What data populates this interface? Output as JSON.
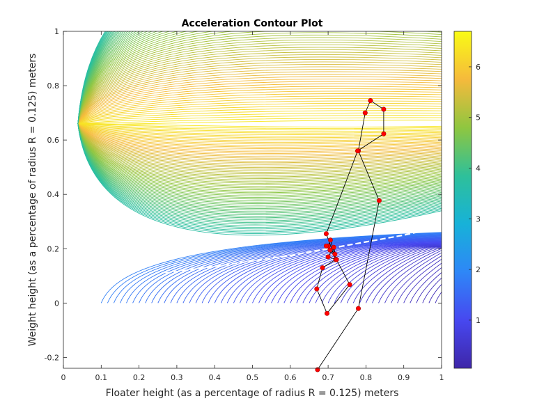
{
  "chart_data": {
    "type": "contour",
    "title": "Acceleration Contour Plot",
    "xlabel": "Floater height (as a percentage of radius R = 0.125) meters",
    "ylabel": "Weight height (as a percentage of radius R = 0.125) meters",
    "xlim": [
      0,
      1
    ],
    "ylim": [
      -0.24,
      1
    ],
    "x_ticks": [
      "0",
      "0.1",
      "0.2",
      "0.3",
      "0.4",
      "0.5",
      "0.6",
      "0.7",
      "0.8",
      "0.9",
      "1"
    ],
    "y_ticks": [
      "-0.2",
      "0",
      "0.2",
      "0.4",
      "0.6",
      "0.8",
      "1"
    ],
    "x_tick_values": [
      0,
      0.1,
      0.2,
      0.3,
      0.4,
      0.5,
      0.6,
      0.7,
      0.8,
      0.9,
      1
    ],
    "y_tick_values": [
      -0.2,
      0,
      0.2,
      0.4,
      0.6,
      0.8,
      1
    ],
    "contour_region": {
      "x": [
        0.1,
        1
      ],
      "y": [
        0,
        1
      ]
    },
    "colorbar": {
      "colormap": "parula",
      "range": [
        0.05,
        6.7
      ],
      "ticks": [
        "1",
        "2",
        "3",
        "4",
        "5",
        "6"
      ],
      "tick_values": [
        1,
        2,
        3,
        4,
        5,
        6
      ],
      "colors": [
        "#3e26a8",
        "#4748f0",
        "#2e87f7",
        "#17b2d8",
        "#2ec09a",
        "#8fc640",
        "#f5ba3c",
        "#f9fb15"
      ]
    },
    "minimum_valley": {
      "description_color": "#ffffff",
      "x": [
        0.27,
        0.4,
        0.5,
        0.6,
        0.7,
        0.8,
        0.9,
        0.98
      ],
      "y": [
        0.11,
        0.135,
        0.155,
        0.175,
        0.2,
        0.225,
        0.25,
        0.275
      ]
    },
    "series": [
      {
        "type": "line-scatter",
        "marker_color": "#ff0000",
        "line_color": "#000000",
        "x": [
          0.672,
          0.78,
          0.835,
          0.78,
          0.798,
          0.812,
          0.847,
          0.847,
          0.778,
          0.695,
          0.72,
          0.685,
          0.67,
          0.697,
          0.757,
          0.722,
          0.706,
          0.7,
          0.718,
          0.695,
          0.705,
          0.722,
          0.7,
          0.715,
          0.722
        ],
        "y": [
          -0.245,
          -0.02,
          0.377,
          0.56,
          0.7,
          0.745,
          0.713,
          0.623,
          0.56,
          0.255,
          0.16,
          0.13,
          0.052,
          -0.038,
          0.068,
          0.16,
          0.232,
          0.21,
          0.18,
          0.21,
          0.195,
          0.16,
          0.17,
          0.205,
          0.16
        ]
      }
    ]
  }
}
